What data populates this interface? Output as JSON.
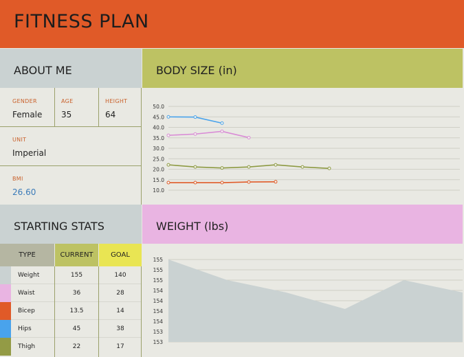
{
  "header": {
    "title": "FITNESS PLAN"
  },
  "about": {
    "title": "ABOUT ME",
    "gender_label": "GENDER",
    "gender": "Female",
    "age_label": "AGE",
    "age": "35",
    "height_label": "HEIGHT",
    "height": "64",
    "unit_label": "UNIT",
    "unit": "Imperial",
    "bmi_label": "BMI",
    "bmi": "26.60"
  },
  "body_size": {
    "title": "BODY SIZE (in)"
  },
  "stats": {
    "title": "STARTING STATS",
    "headers": {
      "type": "TYPE",
      "current": "CURRENT",
      "goal": "GOAL"
    },
    "rows": [
      {
        "type": "Weight",
        "current": "155",
        "goal": "140",
        "color": "#cad2d2"
      },
      {
        "type": "Waist",
        "current": "36",
        "goal": "28",
        "color": "#e9b4e2"
      },
      {
        "type": "Bicep",
        "current": "13.5",
        "goal": "14",
        "color": "#e05a28"
      },
      {
        "type": "Hips",
        "current": "45",
        "goal": "38",
        "color": "#49a3ec"
      },
      {
        "type": "Thigh",
        "current": "22",
        "goal": "17",
        "color": "#939b45"
      }
    ]
  },
  "weight": {
    "title": "WEIGHT (lbs)"
  },
  "chart_data": [
    {
      "type": "line",
      "ylim": [
        10,
        50
      ],
      "y_ticks": [
        "10.0",
        "15.0",
        "20.0",
        "25.0",
        "30.0",
        "35.0",
        "40.0",
        "45.0",
        "50.0"
      ],
      "grid": true,
      "series": [
        {
          "values": [
            45,
            44.9,
            42
          ],
          "color": "#49a3ec"
        },
        {
          "values": [
            36.2,
            36.8,
            38.1,
            35.1
          ],
          "color": "#d98bd6"
        },
        {
          "values": [
            22.1,
            21.1,
            20.6,
            21.1,
            22.1,
            21.1,
            20.4
          ],
          "color": "#8d9a42"
        },
        {
          "values": [
            13.6,
            13.6,
            13.6,
            13.9,
            14
          ],
          "color": "#e05a28"
        }
      ]
    },
    {
      "type": "area",
      "ylim": [
        153,
        155
      ],
      "y_ticks": [
        "153",
        "153",
        "154",
        "154",
        "154",
        "154",
        "155",
        "155",
        "155"
      ],
      "grid": true,
      "series": [
        {
          "values": [
            155,
            154.5,
            154.2,
            153.8,
            154.5,
            154.2
          ],
          "color": "#cad2d2"
        }
      ]
    }
  ]
}
